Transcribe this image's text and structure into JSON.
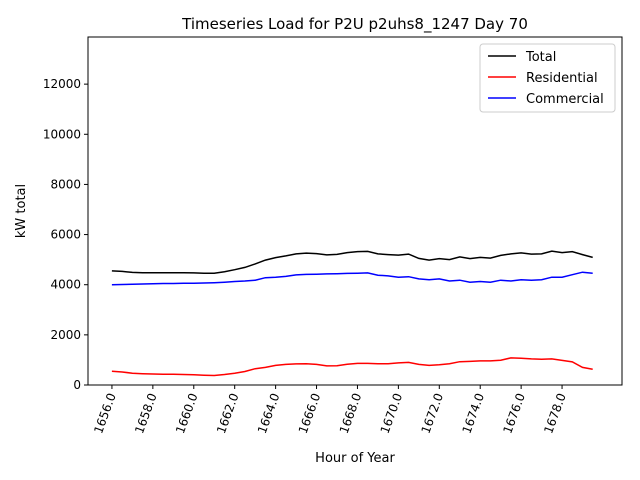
{
  "chart_data": {
    "type": "line",
    "title": "Timeseries Load for P2U p2uhs8_1247  Day 70",
    "xlabel": "Hour of Year",
    "ylabel": "kW total",
    "xlim": [
      1654.83,
      1680.93
    ],
    "ylim": [
      0,
      13880
    ],
    "xticks": [
      1656,
      1658,
      1660,
      1662,
      1664,
      1666,
      1668,
      1670,
      1672,
      1674,
      1676,
      1678
    ],
    "xtick_labels": [
      "1656.0",
      "1658.0",
      "1660.0",
      "1662.0",
      "1664.0",
      "1666.0",
      "1668.0",
      "1670.0",
      "1672.0",
      "1674.0",
      "1676.0",
      "1678.0"
    ],
    "yticks": [
      0,
      2000,
      4000,
      6000,
      8000,
      10000,
      12000
    ],
    "ytick_labels": [
      "0",
      "2000",
      "4000",
      "6000",
      "8000",
      "10000",
      "12000"
    ],
    "grid": false,
    "legend_placement": "top-right",
    "x_start": 1656,
    "x_step": 0.5,
    "series": [
      {
        "name": "Total",
        "color": "#000000",
        "values": [
          4550,
          4530,
          4490,
          4480,
          4480,
          4480,
          4480,
          4480,
          4470,
          4460,
          4460,
          4520,
          4600,
          4690,
          4830,
          4980,
          5080,
          5150,
          5230,
          5260,
          5240,
          5190,
          5210,
          5280,
          5320,
          5330,
          5230,
          5200,
          5180,
          5220,
          5050,
          4980,
          5040,
          5000,
          5110,
          5040,
          5090,
          5060,
          5170,
          5230,
          5270,
          5220,
          5230,
          5340,
          5280,
          5320,
          5200,
          5090
        ]
      },
      {
        "name": "Residential",
        "color": "#ff0000",
        "values": [
          550,
          520,
          470,
          450,
          440,
          430,
          430,
          420,
          410,
          390,
          380,
          420,
          470,
          540,
          650,
          700,
          780,
          820,
          840,
          850,
          820,
          760,
          770,
          830,
          860,
          860,
          850,
          850,
          880,
          900,
          820,
          780,
          810,
          850,
          930,
          940,
          960,
          960,
          990,
          1080,
          1070,
          1040,
          1030,
          1040,
          980,
          920,
          700,
          630
        ]
      },
      {
        "name": "Commercial",
        "color": "#0000ff",
        "values": [
          4000,
          4010,
          4020,
          4030,
          4040,
          4050,
          4050,
          4060,
          4060,
          4070,
          4080,
          4100,
          4130,
          4150,
          4180,
          4280,
          4300,
          4330,
          4390,
          4410,
          4420,
          4430,
          4440,
          4450,
          4460,
          4470,
          4380,
          4350,
          4300,
          4320,
          4230,
          4200,
          4230,
          4150,
          4180,
          4100,
          4130,
          4100,
          4180,
          4150,
          4200,
          4180,
          4200,
          4300,
          4300,
          4400,
          4500,
          4460
        ]
      }
    ]
  }
}
